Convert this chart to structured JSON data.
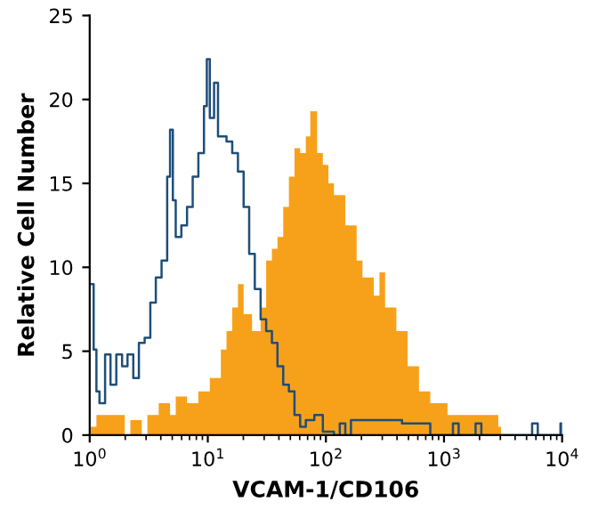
{
  "chart_data": {
    "type": "step",
    "xlabel": "VCAM-1/CD106",
    "ylabel": "Relative Cell Number",
    "log": "x",
    "grid": false,
    "legend": false,
    "xlim": [
      1,
      10000
    ],
    "ylim": [
      0,
      25
    ],
    "xticks": [
      {
        "value": 1,
        "label": "10$^{0}$"
      },
      {
        "value": 10,
        "label": "10$^{1}$"
      },
      {
        "value": 100,
        "label": "10$^{2}$"
      },
      {
        "value": 1000,
        "label": "10$^{3}$"
      },
      {
        "value": 10000,
        "label": "10$^{4}$"
      }
    ],
    "yticks": [
      0,
      5,
      10,
      15,
      20,
      25
    ],
    "series": [
      {
        "type": "area",
        "color": "#f7a11a",
        "x": [
          1.02,
          1.14,
          1.77,
          1.98,
          2.21,
          2.76,
          3.08,
          3.84,
          4.79,
          5.35,
          6.67,
          8.32,
          10.4,
          12.9,
          14.4,
          16.1,
          18.0,
          20.1,
          23.7,
          28.0,
          31.2,
          34.9,
          38.9,
          43.5,
          48.6,
          54.2,
          60.5,
          67.6,
          73.8,
          84.3,
          94.2,
          105,
          117,
          146,
          182,
          204,
          254,
          284,
          317,
          395,
          492,
          614,
          765,
          1070,
          1660,
          2880,
          3040
        ],
        "values": [
          0.5,
          1.2,
          1.2,
          0,
          0.9,
          0,
          1.2,
          1.9,
          1.2,
          2.3,
          1.9,
          2.6,
          3.4,
          5.1,
          6.2,
          7.6,
          9,
          7.2,
          6.2,
          7.6,
          10.4,
          11.1,
          11.8,
          13.6,
          15.4,
          17.1,
          16.8,
          17.8,
          19.3,
          16.8,
          16.1,
          15,
          14.3,
          12.5,
          10.4,
          9.4,
          8.3,
          9.7,
          7.6,
          6.2,
          4.1,
          2.6,
          1.9,
          1.2,
          1.2,
          0.5,
          0
        ]
      },
      {
        "color": "#1f4e79",
        "x": [
          1.02,
          1.08,
          1.14,
          1.21,
          1.35,
          1.5,
          1.68,
          1.88,
          2.09,
          2.34,
          2.61,
          2.92,
          3.26,
          3.63,
          4.06,
          4.53,
          4.79,
          5.06,
          5.35,
          5.97,
          6.67,
          7.45,
          8.32,
          9.28,
          9.81,
          10.4,
          11.3,
          12.2,
          14.4,
          16.1,
          18.0,
          20.1,
          22.4,
          25.0,
          28.0,
          31.2,
          34.9,
          38.9,
          43.5,
          48.6,
          54.2,
          60.5,
          67.6,
          79.8,
          94.2,
          117,
          131,
          146,
          163,
          254,
          441,
          765,
          1190,
          1330,
          1850,
          2070,
          5570,
          6220,
          9680,
          9900
        ],
        "values": [
          9,
          5.1,
          2.6,
          1.9,
          4.8,
          3,
          4.8,
          4.1,
          4.8,
          3.4,
          5.5,
          5.8,
          7.9,
          9.4,
          10.4,
          15.4,
          18.2,
          14,
          11.8,
          12.5,
          13.6,
          15.4,
          16.8,
          19.6,
          22.4,
          18.9,
          21,
          17.8,
          17.5,
          16.8,
          15.7,
          13.6,
          10.8,
          8.7,
          6.9,
          6.2,
          5.5,
          4.1,
          3,
          2.6,
          1.2,
          0.5,
          0.9,
          1.2,
          0.2,
          0,
          0.7,
          0,
          0.9,
          0.9,
          0.7,
          0,
          0.7,
          0,
          0.7,
          0,
          0.7,
          0,
          0.7,
          0
        ]
      }
    ]
  }
}
